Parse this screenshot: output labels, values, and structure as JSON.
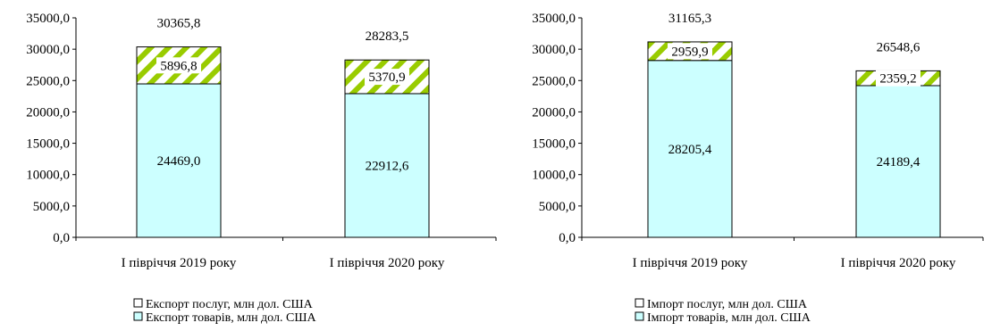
{
  "colors": {
    "goods_fill": "#ccffff",
    "services_stripe": "#99cc00",
    "axis": "#000000"
  },
  "chart_data": [
    {
      "type": "bar",
      "stacked": true,
      "categories": [
        "І півріччя 2019 року",
        "І півріччя 2020 року"
      ],
      "series": [
        {
          "name": "Експорт товарів, млн дол. США",
          "values": [
            24469.0,
            22912.6
          ],
          "labels": [
            "24469,0",
            "22912,6"
          ]
        },
        {
          "name": "Експорт послуг, млн дол. США",
          "values": [
            5896.8,
            5370.9
          ],
          "labels": [
            "5896,8",
            "5370,9"
          ]
        }
      ],
      "totals": [
        30365.8,
        28283.5
      ],
      "total_labels": [
        "30365,8",
        "28283,5"
      ],
      "ylim": [
        0,
        35000
      ],
      "yticks": [
        0,
        5000,
        10000,
        15000,
        20000,
        25000,
        30000,
        35000
      ],
      "ytick_labels": [
        "0,0",
        "5000,0",
        "10000,0",
        "15000,0",
        "20000,0",
        "25000,0",
        "30000,0",
        "35000,0"
      ],
      "legend": [
        "Експорт послуг, млн дол. США",
        "Експорт товарів, млн дол. США"
      ],
      "legend_position": "bottom",
      "grid": false
    },
    {
      "type": "bar",
      "stacked": true,
      "categories": [
        "І півріччя 2019 року",
        "І півріччя 2020 року"
      ],
      "series": [
        {
          "name": "Імпорт товарів, млн дол. США",
          "values": [
            28205.4,
            24189.4
          ],
          "labels": [
            "28205,4",
            "24189,4"
          ]
        },
        {
          "name": "Імпорт послуг, млн дол. США",
          "values": [
            2959.9,
            2359.2
          ],
          "labels": [
            "2959,9",
            "2359,2"
          ]
        }
      ],
      "totals": [
        31165.3,
        26548.6
      ],
      "total_labels": [
        "31165,3",
        "26548,6"
      ],
      "ylim": [
        0,
        35000
      ],
      "yticks": [
        0,
        5000,
        10000,
        15000,
        20000,
        25000,
        30000,
        35000
      ],
      "ytick_labels": [
        "0,0",
        "5000,0",
        "10000,0",
        "15000,0",
        "20000,0",
        "25000,0",
        "30000,0",
        "35000,0"
      ],
      "legend": [
        "Імпорт послуг, млн дол. США",
        "Імпорт товарів, млн дол. США"
      ],
      "legend_position": "bottom",
      "grid": false
    }
  ]
}
